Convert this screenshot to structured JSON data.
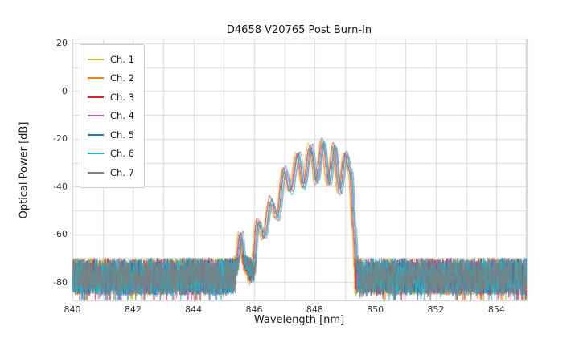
{
  "chart_data": {
    "type": "line",
    "title": "D4658 V20765 Post Burn-In",
    "xlabel": "Wavelength [nm]",
    "ylabel": "Optical Power [dB]",
    "xlim": [
      840,
      855
    ],
    "ylim": [
      -88,
      22
    ],
    "xticks": [
      840,
      842,
      844,
      846,
      848,
      850,
      852,
      854
    ],
    "yticks": [
      20,
      0,
      -20,
      -40,
      -60,
      -80
    ],
    "x_grid_step_nm": 1,
    "y_grid_step_db": 10,
    "grid": true,
    "legend_position": "upper left",
    "noise_floor_db": -78,
    "noise_band_halfwidth_db": 8,
    "series": [
      {
        "name": "Ch. 1",
        "color": "#bcbd22",
        "x_shift_nm": -0.075,
        "y_shift_db": 0.4
      },
      {
        "name": "Ch. 2",
        "color": "#ff7f0e",
        "x_shift_nm": -0.05,
        "y_shift_db": -0.4
      },
      {
        "name": "Ch. 3",
        "color": "#d62728",
        "x_shift_nm": -0.025,
        "y_shift_db": 0.8
      },
      {
        "name": "Ch. 4",
        "color": "#ab63c8",
        "x_shift_nm": 0.0,
        "y_shift_db": -0.2
      },
      {
        "name": "Ch. 5",
        "color": "#1f77b4",
        "x_shift_nm": 0.025,
        "y_shift_db": 0.3
      },
      {
        "name": "Ch. 6",
        "color": "#17becf",
        "x_shift_nm": 0.05,
        "y_shift_db": -0.6
      },
      {
        "name": "Ch. 7",
        "color": "#7f7f7f",
        "x_shift_nm": 0.075,
        "y_shift_db": 0.1
      }
    ],
    "envelope": {
      "x": [
        840,
        845.25,
        845.4,
        845.55,
        845.7,
        845.92,
        846.12,
        846.32,
        846.55,
        846.76,
        847.0,
        847.2,
        847.45,
        847.63,
        847.86,
        848.06,
        848.27,
        848.46,
        848.64,
        848.82,
        849.02,
        849.18,
        849.3,
        849.42,
        855
      ],
      "y": [
        -95,
        -95,
        -76,
        -60,
        -75,
        -82,
        -55,
        -61,
        -46,
        -53,
        -33,
        -42,
        -26.5,
        -40,
        -23.5,
        -38,
        -21.5,
        -38.5,
        -23,
        -42,
        -26.5,
        -34,
        -58,
        -95,
        -95
      ]
    },
    "style": {
      "grid_color": "#d9d9d9",
      "spine_color": "#cccccc",
      "text_color": "#1a1a1a",
      "background": "#ffffff"
    }
  }
}
